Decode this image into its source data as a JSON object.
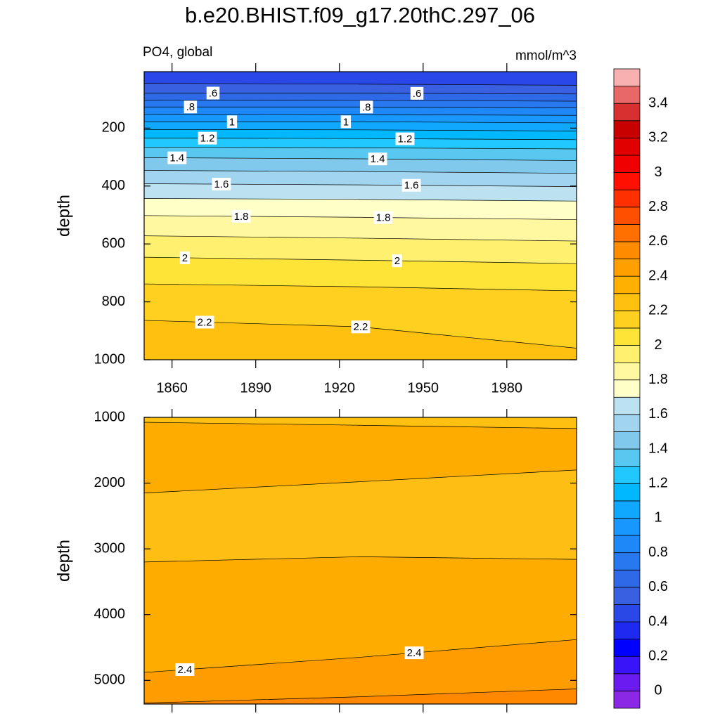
{
  "title": "b.e20.BHIST.f09_g17.20thC.297_06",
  "chart_data": [
    {
      "type": "contour",
      "subtitle_left": "PO4, global",
      "subtitle_right": "mmol/m^3",
      "y_label": "depth",
      "xlim": [
        1850,
        2005
      ],
      "xticks": [
        1860,
        1890,
        1920,
        1950,
        1980
      ],
      "show_xtick_labels": true,
      "ylim": [
        1000,
        5
      ],
      "yticks": [
        200,
        400,
        600,
        800,
        1000
      ],
      "contour_x": [
        1850,
        1927,
        2005
      ],
      "top_fill": "#2a48e8",
      "lines": [
        {
          "depths": [
            45,
            48,
            52
          ],
          "fill_below": "#3860e0"
        },
        {
          "depths": [
            79,
            79,
            82
          ],
          "fill_below": "#2e6ae8",
          "label": {
            "value": 0.6,
            "label": ".6"
          },
          "label_x": [
            1874.7,
            1947.8
          ]
        },
        {
          "depths": [
            103,
            104,
            107
          ],
          "fill_below": "#2878f0"
        },
        {
          "depths": [
            127,
            127,
            130
          ],
          "fill_below": "#1e88f8",
          "label": {
            "value": 0.8,
            "label": ".8"
          },
          "label_x": [
            1866.6,
            1929.7
          ]
        },
        {
          "depths": [
            152,
            153,
            156
          ],
          "fill_below": "#1898ff"
        },
        {
          "depths": [
            178,
            178,
            182
          ],
          "fill_below": "#10a8ff",
          "label": 1,
          "label_x": [
            1881.5,
            1922.3
          ]
        },
        {
          "depths": [
            205,
            206,
            210
          ],
          "fill_below": "#00b8ff"
        },
        {
          "depths": [
            234,
            236,
            240
          ],
          "fill_below": "#20c8ff",
          "label": 1.2,
          "label_x": [
            1872.7,
            1943.5
          ]
        },
        {
          "depths": [
            266,
            268,
            272
          ],
          "fill_below": "#58c8f0"
        },
        {
          "depths": [
            302,
            306,
            312
          ],
          "fill_below": "#80c8ec",
          "label": 1.4,
          "label_x": [
            1861.8,
            1933.7
          ]
        },
        {
          "depths": [
            346,
            350,
            356
          ],
          "fill_below": "#a0d4ef"
        },
        {
          "depths": [
            392,
            396,
            402
          ],
          "fill_below": "#bce2f2",
          "label": 1.6,
          "label_x": [
            1877.7,
            1945.8
          ]
        },
        {
          "depths": [
            443,
            446,
            452
          ],
          "fill_below": "#ffffc8"
        },
        {
          "depths": [
            502,
            508,
            516
          ],
          "fill_below": "#fff8a0",
          "label": 1.8,
          "label_x": [
            1884.8,
            1935.7
          ]
        },
        {
          "depths": [
            572,
            580,
            590
          ],
          "fill_below": "#fff070"
        },
        {
          "depths": [
            646,
            656,
            668
          ],
          "fill_below": "#ffe438",
          "label": 2,
          "label_x": [
            1864.6,
            1940.7
          ]
        },
        {
          "depths": [
            738,
            748,
            762
          ],
          "fill_below": "#ffd020"
        },
        {
          "depths": [
            864,
            886,
            960
          ],
          "fill_below": "#ffc010",
          "label": 2.2,
          "label_x": [
            1871.7,
            1927.6
          ]
        }
      ]
    },
    {
      "type": "contour",
      "y_label": "depth",
      "xlim": [
        1850,
        2005
      ],
      "xticks": [
        1860,
        1890,
        1920,
        1950,
        1980
      ],
      "show_xtick_labels": false,
      "ylim": [
        5360,
        1000
      ],
      "yticks": [
        1000,
        2000,
        3000,
        4000,
        5000
      ],
      "contour_x": [
        1850,
        1927,
        2005
      ],
      "top_fill": "#ffc010",
      "lines": [
        {
          "depths": [
            1075,
            1120,
            1170
          ],
          "fill_below": "#ffac00"
        },
        {
          "depths": [
            2150,
            1980,
            1800
          ],
          "fill_below": "#ffbe14"
        },
        {
          "depths": [
            3200,
            3120,
            3160
          ],
          "fill_below": "#ffac00"
        },
        {
          "depths": [
            4880,
            4650,
            4380
          ],
          "fill_below": "#ff9c00",
          "label": 2.4,
          "label_x": [
            1864.6,
            1946.8
          ]
        },
        {
          "depths": [
            5345,
            5250,
            5130
          ],
          "fill_below": "#ff8800"
        }
      ]
    },
    {
      "type": "colorbar",
      "levels": [
        0,
        0.1,
        0.2,
        0.3,
        0.4,
        0.5,
        0.6,
        0.7,
        0.8,
        0.9,
        1,
        1.1,
        1.2,
        1.3,
        1.4,
        1.5,
        1.6,
        1.7,
        1.8,
        1.9,
        2,
        2.1,
        2.2,
        2.3,
        2.4,
        2.5,
        2.6,
        2.7,
        2.8,
        2.9,
        3,
        3.1,
        3.2,
        3.3,
        3.4,
        3.5
      ],
      "colors": [
        "#8a28e6",
        "#6a1cf0",
        "#3a14f8",
        "#0000ff",
        "#1e2af0",
        "#2a48e8",
        "#3860e0",
        "#2e6ae8",
        "#2878f0",
        "#1e88f8",
        "#1898ff",
        "#10a8ff",
        "#00b8ff",
        "#20c8ff",
        "#58c8f0",
        "#80c8ec",
        "#a0d4ef",
        "#bce2f2",
        "#ffffc8",
        "#fff8a0",
        "#fff070",
        "#ffe438",
        "#ffd020",
        "#ffc010",
        "#ffb000",
        "#ffa000",
        "#ff8c00",
        "#ff7000",
        "#ff5000",
        "#ff3000",
        "#ff1000",
        "#f00000",
        "#e00000",
        "#c80000",
        "#d83030",
        "#e86868",
        "#f8b0b0"
      ],
      "ticks": [
        0,
        0.2,
        0.4,
        0.6,
        0.8,
        1,
        1.2,
        1.4,
        1.6,
        1.8,
        2,
        2.2,
        2.4,
        2.6,
        2.8,
        3,
        3.2,
        3.4
      ]
    }
  ]
}
